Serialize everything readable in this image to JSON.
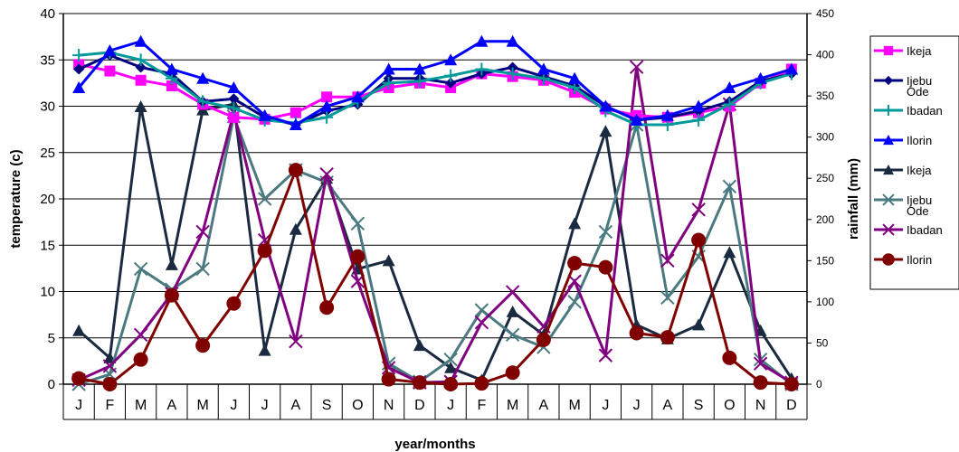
{
  "chart_data": {
    "type": "line",
    "categories": [
      "J",
      "F",
      "M",
      "A",
      "M",
      "J",
      "J",
      "A",
      "S",
      "O",
      "N",
      "D",
      "J",
      "F",
      "M",
      "A",
      "M",
      "J",
      "J",
      "A",
      "S",
      "O",
      "N",
      "D"
    ],
    "xlabel": "year/months",
    "ylabel_left": "temperature (c)",
    "ylabel_right": "rainfall (mm)",
    "ylim_left": [
      0,
      40
    ],
    "yticks_left": [
      "0",
      "5",
      "10",
      "15",
      "20",
      "25",
      "30",
      "35",
      "40"
    ],
    "ylim_right": [
      0,
      450
    ],
    "yticks_right": [
      "0",
      "50",
      "100",
      "150",
      "200",
      "250",
      "300",
      "350",
      "400",
      "450"
    ],
    "legend_position": "right",
    "temperature_series": [
      {
        "name": "Ikeja",
        "color": "#ff00ff",
        "marker": "square",
        "values": [
          34.5,
          33.8,
          32.8,
          32.2,
          30.2,
          28.8,
          28.6,
          29.3,
          31.0,
          31.0,
          32.0,
          32.5,
          32.0,
          33.5,
          33.2,
          32.8,
          31.5,
          29.7,
          29.0,
          28.8,
          29.3,
          30.0,
          32.5,
          34.0
        ]
      },
      {
        "name": "Ijebu Ode",
        "color": "#000080",
        "marker": "diamond",
        "values": [
          34.0,
          35.5,
          34.2,
          33.5,
          30.5,
          30.8,
          28.8,
          28.0,
          29.5,
          30.2,
          33.0,
          33.0,
          32.5,
          33.5,
          34.2,
          33.2,
          32.2,
          30.0,
          28.5,
          28.8,
          29.5,
          30.5,
          32.7,
          33.5
        ]
      },
      {
        "name": "Ibadan",
        "color": "#009999",
        "marker": "plus",
        "values": [
          35.5,
          35.8,
          35.0,
          33.0,
          30.5,
          29.8,
          28.5,
          28.2,
          28.8,
          30.5,
          32.5,
          32.7,
          33.3,
          34.0,
          33.5,
          33.0,
          32.0,
          29.5,
          28.0,
          28.0,
          28.5,
          30.2,
          32.5,
          33.5
        ]
      },
      {
        "name": "Ilorin",
        "color": "#0000ff",
        "marker": "triangle",
        "values": [
          32.0,
          36.0,
          37.0,
          34.0,
          33.0,
          32.0,
          29.0,
          28.0,
          30.0,
          31.0,
          34.0,
          34.0,
          35.0,
          37.0,
          37.0,
          34.0,
          33.0,
          30.0,
          28.5,
          29.0,
          30.0,
          32.0,
          33.0,
          34.0
        ]
      }
    ],
    "rainfall_series": [
      {
        "name": "Ikeja",
        "color": "#1a2a40",
        "marker": "triangle",
        "values": [
          65,
          32,
          337,
          145,
          333,
          340,
          41,
          188,
          250,
          140,
          150,
          47,
          20,
          5,
          88,
          60,
          195,
          307,
          72,
          55,
          72,
          160,
          65,
          7
        ]
      },
      {
        "name": "Ijebu Ode",
        "color": "#4a7a80",
        "marker": "x",
        "values": [
          0,
          12,
          140,
          115,
          140,
          325,
          225,
          260,
          245,
          195,
          25,
          3,
          30,
          90,
          60,
          45,
          100,
          185,
          315,
          105,
          155,
          240,
          30,
          0
        ]
      },
      {
        "name": "Ibadan",
        "color": "#800080",
        "marker": "x",
        "values": [
          5,
          22,
          60,
          110,
          185,
          330,
          175,
          52,
          255,
          125,
          20,
          2,
          3,
          75,
          112,
          70,
          125,
          35,
          385,
          150,
          212,
          340,
          25,
          2
        ]
      },
      {
        "name": "Ilorin",
        "color": "#800000",
        "marker": "circle",
        "values": [
          7,
          0,
          30,
          108,
          47,
          98,
          162,
          260,
          93,
          155,
          6,
          2,
          0,
          1,
          14,
          54,
          147,
          142,
          62,
          57,
          175,
          32,
          2,
          0
        ]
      }
    ],
    "legend_entries": [
      {
        "label": "Ikeja",
        "series": "temperature",
        "index": 0
      },
      {
        "label": "Ijebu Ode",
        "series": "temperature",
        "index": 1
      },
      {
        "label": "Ibadan",
        "series": "temperature",
        "index": 2
      },
      {
        "label": "Ilorin",
        "series": "temperature",
        "index": 3
      },
      {
        "label": "Ikeja",
        "series": "rainfall",
        "index": 0
      },
      {
        "label": "Ijebu Ode",
        "series": "rainfall",
        "index": 1
      },
      {
        "label": "Ibadan",
        "series": "rainfall",
        "index": 2
      },
      {
        "label": "Ilorin",
        "series": "rainfall",
        "index": 3
      }
    ]
  }
}
